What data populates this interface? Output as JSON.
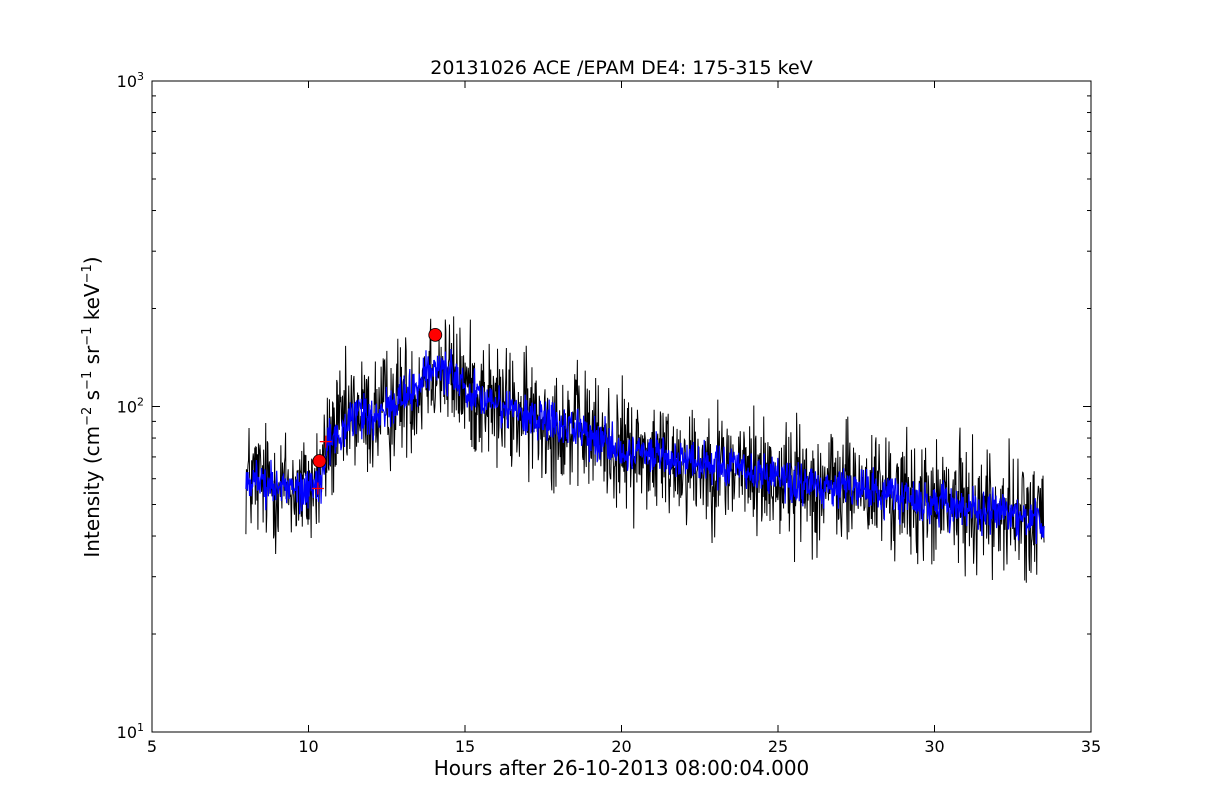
{
  "chart_data": {
    "type": "line",
    "title": "20131026 ACE /EPAM DE4: 175-315 keV",
    "xlabel": "Hours after 26-10-2013 08:00:04.000",
    "ylabel_parts": {
      "prefix": "Intensity (cm",
      "exp1": "−2",
      "s": " s",
      "exp2": "−1",
      "sr": " sr",
      "exp3": "−1",
      "kev": " keV",
      "exp4": "−1",
      "suffix": ")"
    },
    "xlim": [
      5,
      35
    ],
    "ylim": [
      10,
      1000
    ],
    "yscale": "log",
    "grid": false,
    "xticks": [
      5,
      10,
      15,
      20,
      25,
      30,
      35
    ],
    "yticks": [
      {
        "value": 10,
        "base": "10",
        "exp": "1"
      },
      {
        "value": 100,
        "base": "10",
        "exp": "2"
      },
      {
        "value": 1000,
        "base": "10",
        "exp": "3"
      }
    ],
    "series": [
      {
        "style": "raw",
        "color": "#000000",
        "x_start": 8.0,
        "x_end": 33.5,
        "n_points": 1530,
        "noise_fraction": 0.2,
        "envelope_x": [
          8.0,
          9.0,
          10.0,
          10.4,
          10.6,
          11.0,
          11.5,
          12.0,
          12.5,
          13.0,
          13.5,
          13.9,
          14.2,
          15.0,
          16.0,
          17.0,
          18.0,
          19.0,
          20.0,
          21.0,
          22.0,
          23.0,
          24.0,
          25.0,
          26.0,
          27.0,
          28.0,
          29.0,
          30.0,
          31.0,
          32.0,
          33.0,
          33.5
        ],
        "envelope_y": [
          60,
          57,
          55,
          60,
          75,
          85,
          95,
          92,
          98,
          108,
          115,
          135,
          130,
          115,
          100,
          93,
          88,
          82,
          74,
          70,
          68,
          66,
          63,
          60,
          58,
          57,
          55,
          52,
          50,
          50,
          48,
          45,
          44
        ]
      },
      {
        "style": "smoothed",
        "color": "#0000ff",
        "x_start": 8.0,
        "x_end": 33.5,
        "n_points": 1530,
        "noise_fraction": 0.07,
        "envelope_x": [
          8.0,
          9.0,
          10.0,
          10.4,
          10.6,
          11.0,
          11.5,
          12.0,
          12.5,
          13.0,
          13.5,
          13.9,
          14.2,
          15.0,
          16.0,
          17.0,
          18.0,
          19.0,
          20.0,
          21.0,
          22.0,
          23.0,
          24.0,
          25.0,
          26.0,
          27.0,
          28.0,
          29.0,
          30.0,
          31.0,
          32.0,
          33.0,
          33.5
        ],
        "envelope_y": [
          60,
          57,
          55,
          60,
          75,
          85,
          95,
          92,
          98,
          108,
          115,
          135,
          130,
          115,
          100,
          93,
          88,
          82,
          74,
          70,
          68,
          66,
          63,
          60,
          58,
          57,
          55,
          52,
          50,
          50,
          48,
          45,
          44
        ]
      }
    ],
    "markers": [
      {
        "kind": "circle",
        "x": 10.35,
        "y": 68,
        "color": "#ff0000"
      },
      {
        "kind": "circle",
        "x": 14.05,
        "y": 166,
        "color": "#ff0000"
      },
      {
        "kind": "plus",
        "x": 10.3,
        "y": 56,
        "color": "#ff0000"
      },
      {
        "kind": "plus",
        "x": 10.55,
        "y": 78,
        "color": "#ff0000"
      }
    ]
  }
}
